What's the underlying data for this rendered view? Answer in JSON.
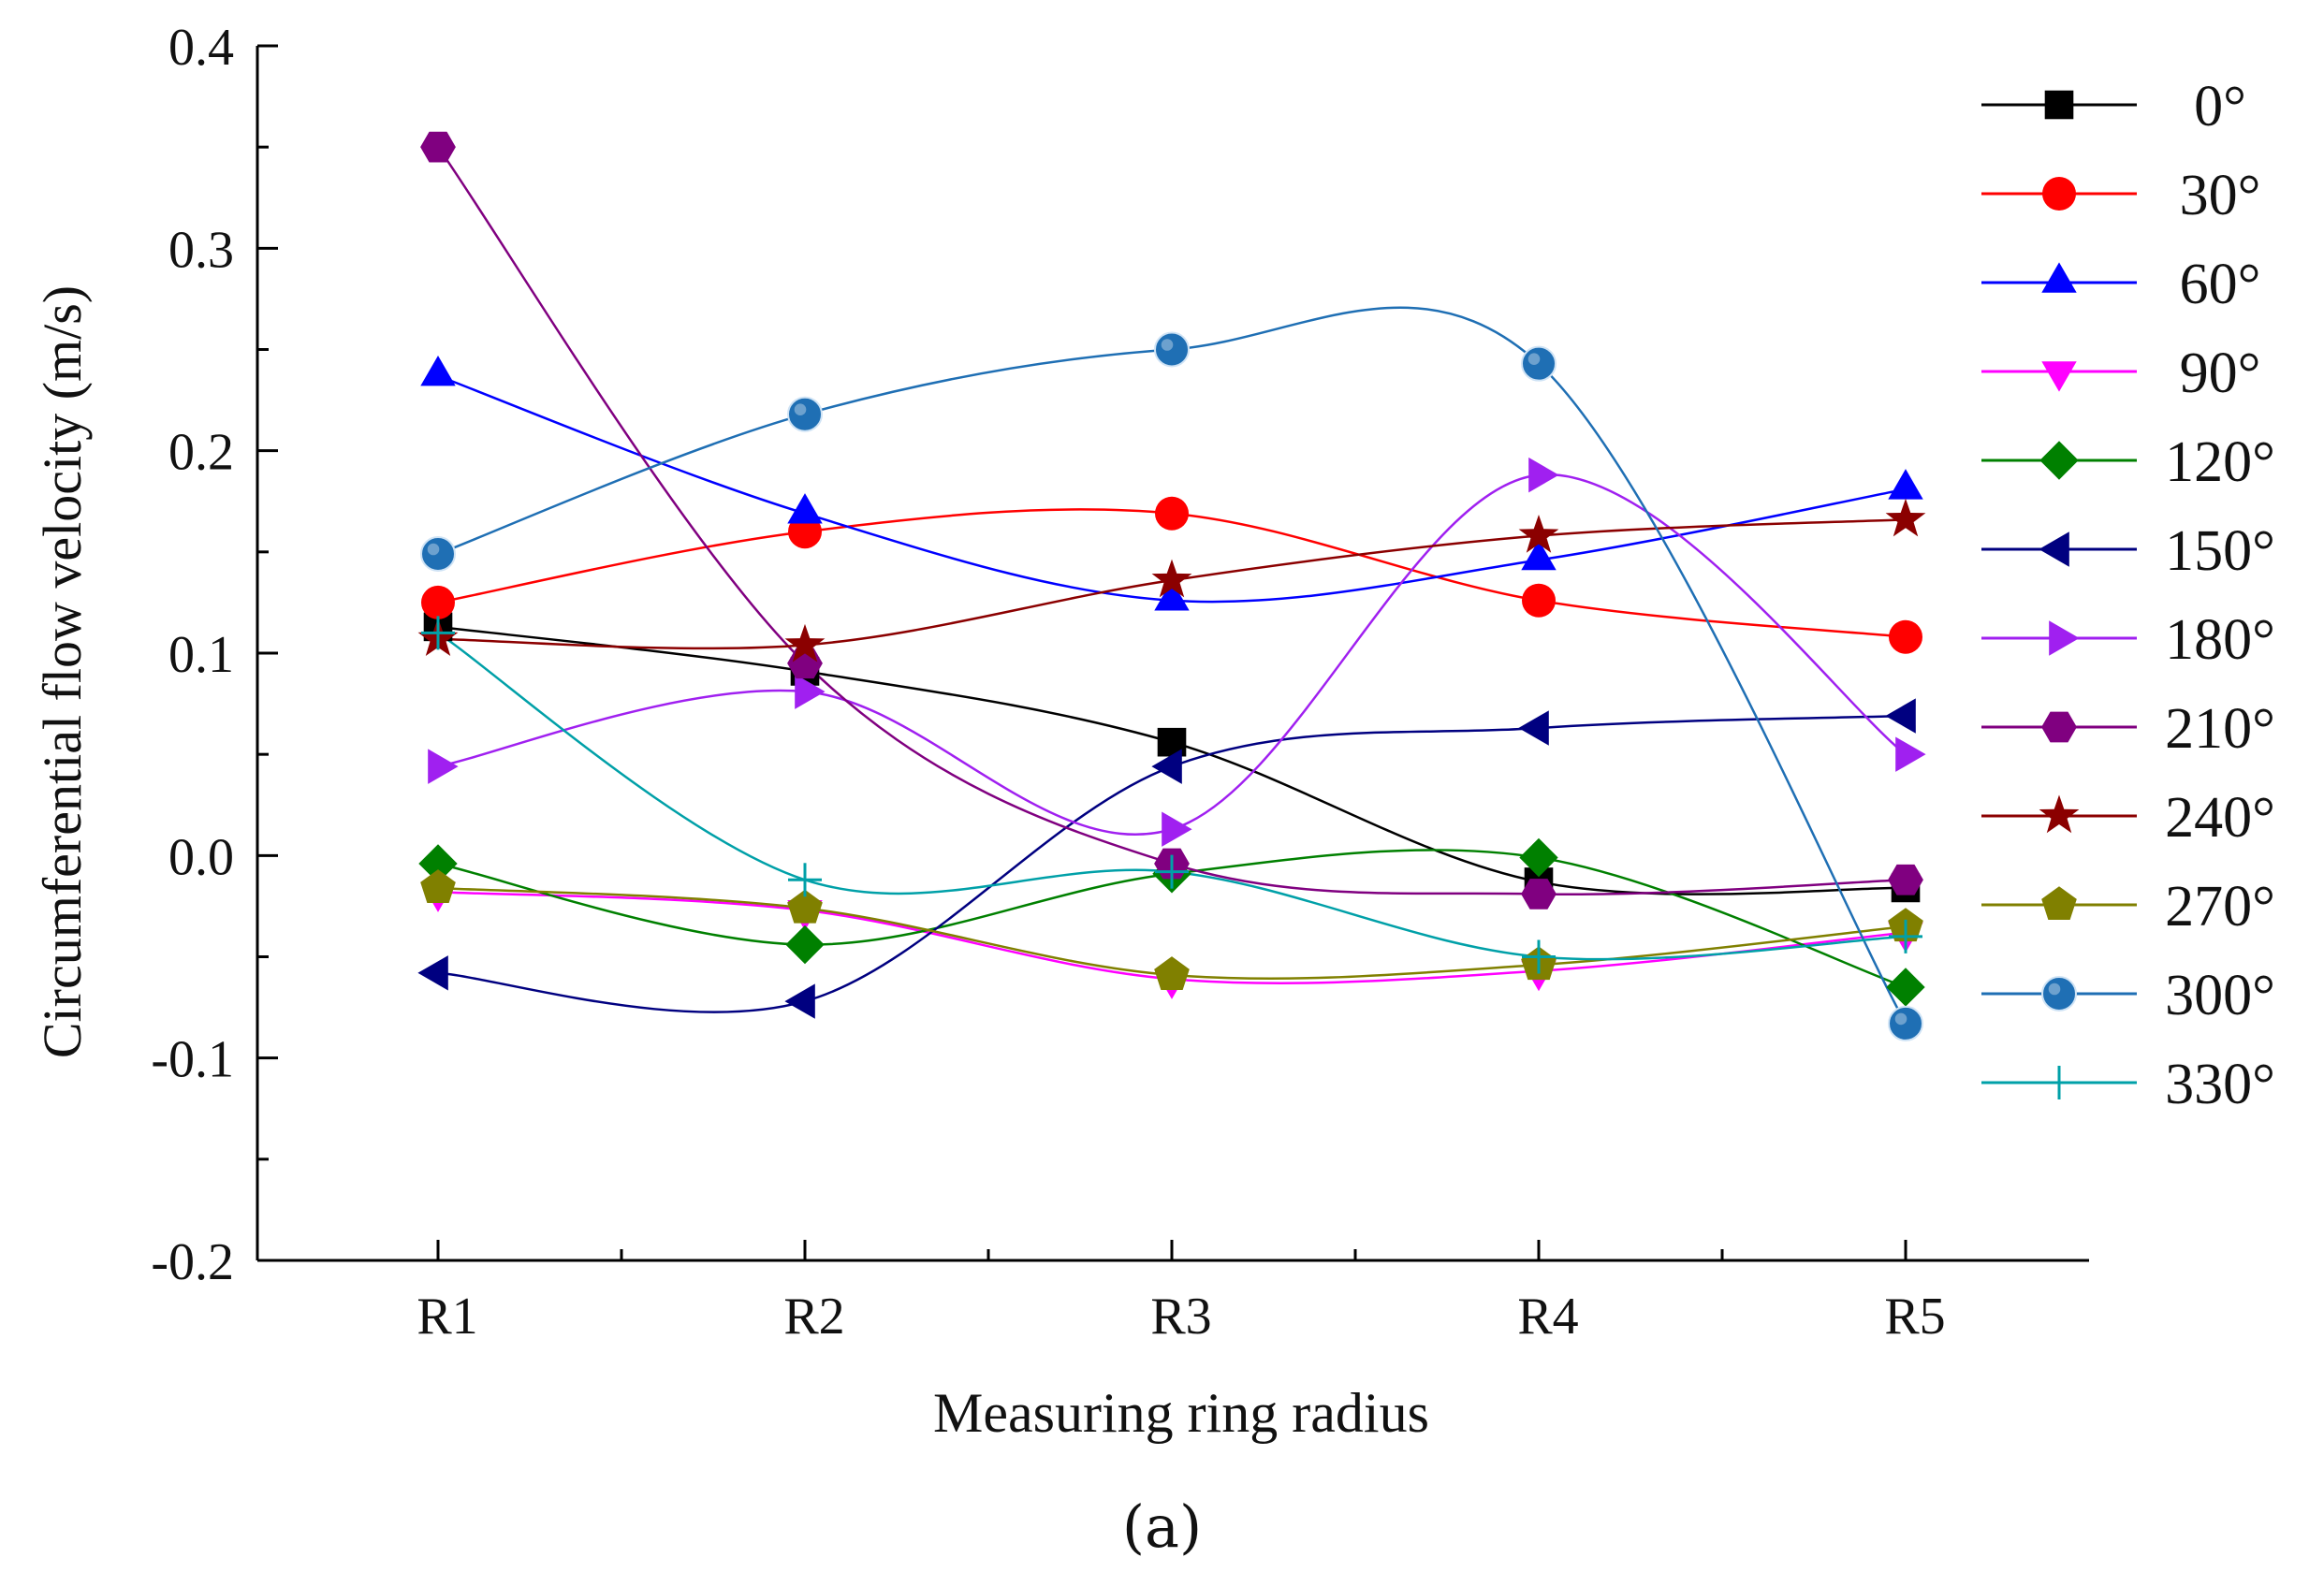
{
  "caption": "(a)",
  "chart_data": {
    "type": "line",
    "title": "",
    "xlabel": "Measuring ring radius",
    "ylabel": "Circumferential flow velocity (m/s)",
    "categories": [
      "R1",
      "R2",
      "R3",
      "R4",
      "R5"
    ],
    "ylim": [
      -0.2,
      0.4
    ],
    "yticks": [
      "0.4",
      "0.3",
      "0.2",
      "0.1",
      "0.0",
      "-0.1",
      "-0.2"
    ],
    "ytick_values": [
      0.4,
      0.3,
      0.2,
      0.1,
      0.0,
      -0.1,
      -0.2
    ],
    "grid": false,
    "legend_position": "right",
    "series": [
      {
        "name": "0°",
        "color": "#000000",
        "marker": "square",
        "values": [
          0.113,
          0.091,
          0.056,
          -0.013,
          -0.016
        ]
      },
      {
        "name": "30°",
        "color": "#ff0000",
        "marker": "circle",
        "values": [
          0.125,
          0.16,
          0.169,
          0.126,
          0.108
        ]
      },
      {
        "name": "60°",
        "color": "#0000ff",
        "marker": "triangle-up",
        "values": [
          0.237,
          0.169,
          0.126,
          0.146,
          0.181
        ]
      },
      {
        "name": "90°",
        "color": "#ff00ff",
        "marker": "triangle-down",
        "values": [
          -0.018,
          -0.027,
          -0.061,
          -0.057,
          -0.038
        ]
      },
      {
        "name": "120°",
        "color": "#008000",
        "marker": "diamond",
        "values": [
          -0.004,
          -0.044,
          -0.009,
          -0.001,
          -0.065
        ]
      },
      {
        "name": "150°",
        "color": "#000080",
        "marker": "triangle-left",
        "values": [
          -0.058,
          -0.072,
          0.044,
          0.063,
          0.069
        ]
      },
      {
        "name": "180°",
        "color": "#a020f0",
        "marker": "triangle-right",
        "values": [
          0.044,
          0.081,
          0.013,
          0.188,
          0.05
        ]
      },
      {
        "name": "210°",
        "color": "#800080",
        "marker": "hexagon",
        "values": [
          0.35,
          0.095,
          -0.004,
          -0.019,
          -0.012
        ]
      },
      {
        "name": "240°",
        "color": "#8b0000",
        "marker": "star",
        "values": [
          0.107,
          0.104,
          0.136,
          0.158,
          0.166
        ]
      },
      {
        "name": "270°",
        "color": "#808000",
        "marker": "pentagon",
        "values": [
          -0.016,
          -0.026,
          -0.059,
          -0.054,
          -0.035
        ]
      },
      {
        "name": "300°",
        "color": "#1f6fb4",
        "marker": "sphere",
        "values": [
          0.149,
          0.218,
          0.25,
          0.243,
          -0.083
        ]
      },
      {
        "name": "330°",
        "color": "#00a0a8",
        "marker": "plus",
        "values": [
          0.11,
          -0.012,
          -0.008,
          -0.05,
          -0.04
        ]
      }
    ]
  }
}
